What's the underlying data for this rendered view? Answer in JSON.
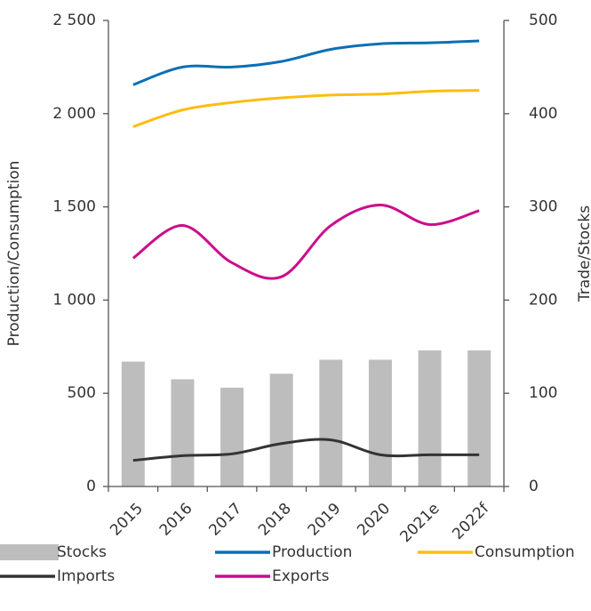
{
  "chart_data": {
    "type": "combo",
    "y_label": "Production/Consumption",
    "y2_label": "Trade/Stocks",
    "categories": [
      "2015",
      "2016",
      "2017",
      "2018",
      "2019",
      "2020",
      "2021e",
      "2022f"
    ],
    "series": [
      {
        "name": "Stocks",
        "type": "bar",
        "axis": "y2",
        "color": "#bdbdbd",
        "values": [
          134,
          115,
          106,
          121,
          136,
          136,
          146,
          146
        ]
      },
      {
        "name": "Production",
        "type": "line",
        "color": "#0a6fb5",
        "values": [
          2155,
          2250,
          2250,
          2280,
          2345,
          2375,
          2380,
          2390
        ]
      },
      {
        "name": "Consumption",
        "type": "line",
        "color": "#fdbd10",
        "values": [
          1930,
          2020,
          2060,
          2085,
          2100,
          2105,
          2120,
          2125
        ]
      },
      {
        "name": "Imports",
        "type": "line",
        "axis": "y2",
        "color": "#333333",
        "values": [
          28,
          33,
          35,
          46,
          50,
          34,
          34,
          34
        ]
      },
      {
        "name": "Exports",
        "type": "line",
        "axis": "y2",
        "color": "#cc0c8c",
        "values": [
          245,
          280,
          240,
          225,
          280,
          302,
          281,
          296
        ]
      }
    ],
    "ylim": [
      0,
      2500
    ],
    "yticks": [
      0,
      500,
      {
        "value": 1000,
        "label": "1 000"
      },
      {
        "value": 1500,
        "label": "1 500"
      },
      {
        "value": 2000,
        "label": "2 000"
      },
      {
        "value": 2500,
        "label": "2 500"
      }
    ],
    "y2lim": [
      0,
      500
    ],
    "y2ticks": [
      0,
      100,
      200,
      300,
      400,
      500
    ],
    "grid": false
  }
}
